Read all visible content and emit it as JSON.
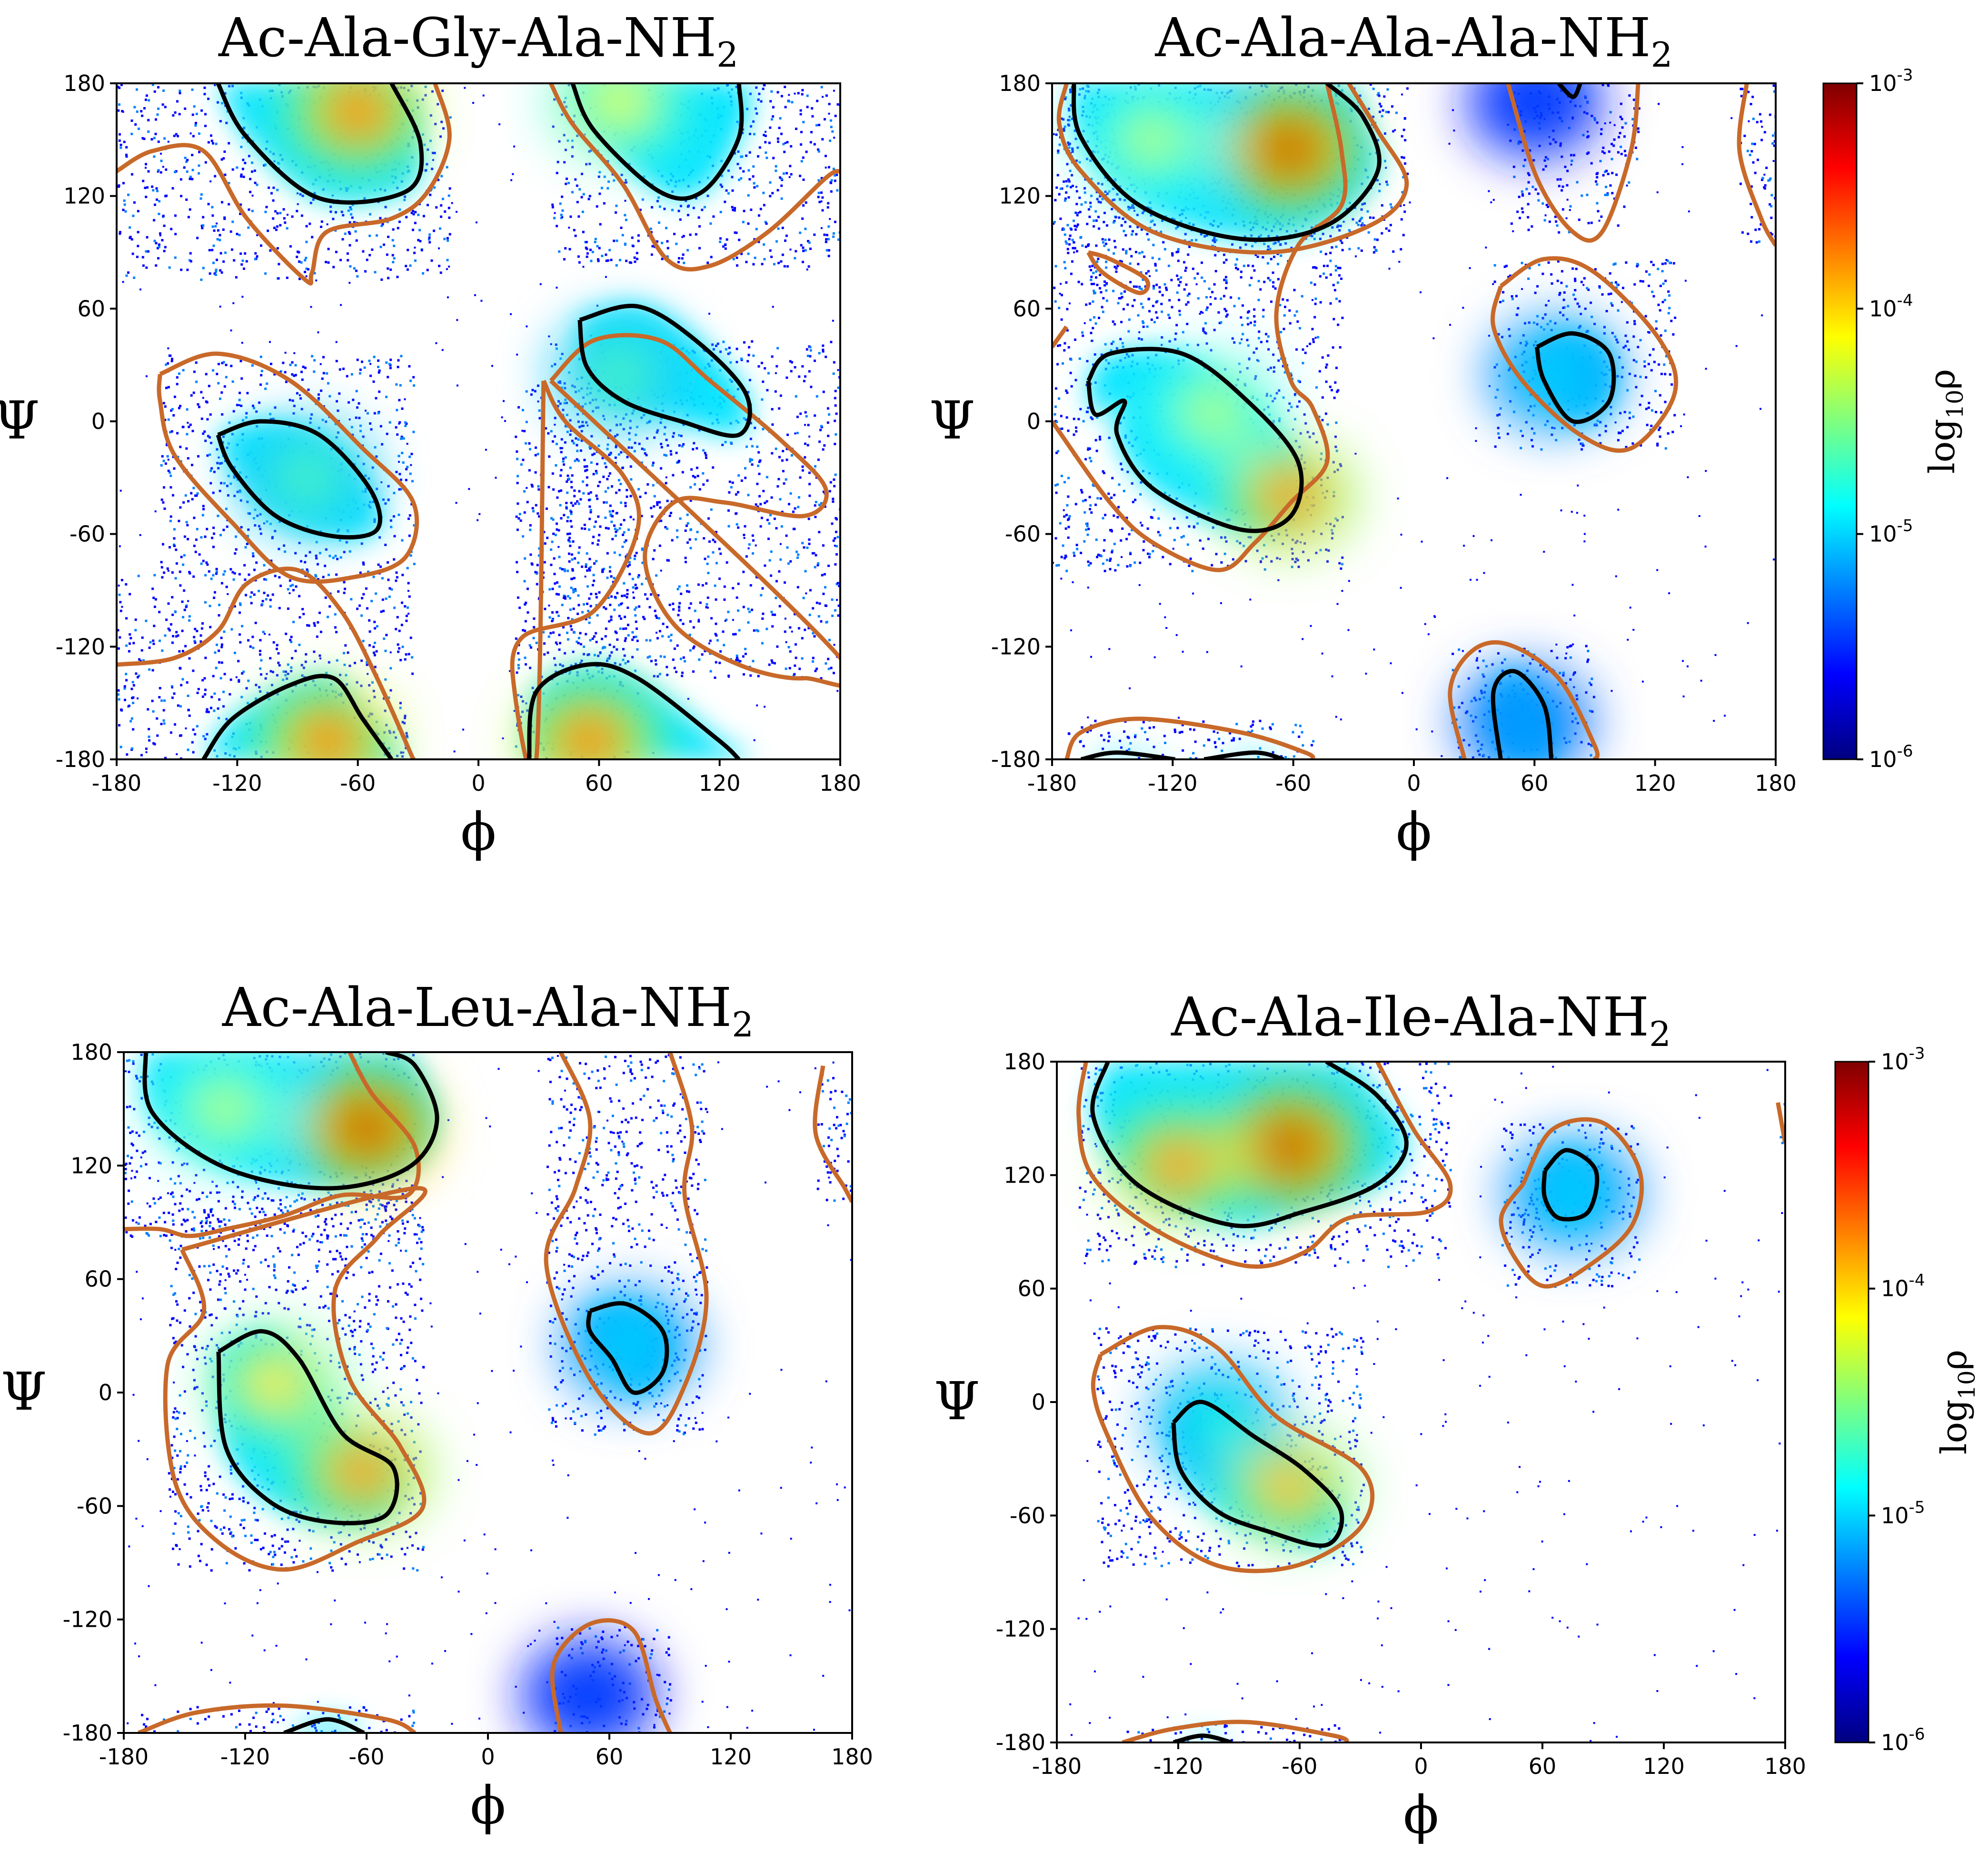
{
  "colors": {
    "outer_contour": "#c8692a",
    "inner_contour": "#000000",
    "colormap": [
      "#00007f",
      "#0000ff",
      "#007fff",
      "#00ffff",
      "#7fff7f",
      "#ffff00",
      "#ff7f00",
      "#ff0000",
      "#7f0000"
    ]
  },
  "colorbar": {
    "label_main": "log",
    "label_sub": "10",
    "label_end": "ρ",
    "ticks": [
      {
        "base": "10",
        "exp": "-3",
        "value": 0.001
      },
      {
        "base": "10",
        "exp": "-4",
        "value": 0.0001
      },
      {
        "base": "10",
        "exp": "-5",
        "value": 1e-05
      },
      {
        "base": "10",
        "exp": "-6",
        "value": 1e-06
      }
    ]
  },
  "chart_data": [
    {
      "type": "heatmap",
      "title_main": "Ac-Ala-Gly-Ala-NH",
      "title_sub": "2",
      "xlabel": "ϕ",
      "ylabel": "Ψ",
      "xlim": [
        -180,
        180
      ],
      "ylim": [
        -180,
        180
      ],
      "xticks": [
        "-180",
        "-120",
        "-60",
        "0",
        "60",
        "120",
        "180"
      ],
      "yticks": [
        "180",
        "120",
        "60",
        "0",
        "-60",
        "-120",
        "-180"
      ],
      "colorbar": false,
      "peaks": [
        {
          "phi": -60,
          "psi": 165,
          "level": 0.8
        },
        {
          "phi": 70,
          "psi": 170,
          "level": 0.6
        },
        {
          "phi": -85,
          "psi": -30,
          "level": 0.45
        },
        {
          "phi": 70,
          "psi": 25,
          "level": 0.45
        },
        {
          "phi": -75,
          "psi": -170,
          "level": 0.8
        },
        {
          "phi": 55,
          "psi": -170,
          "level": 0.8
        }
      ]
    },
    {
      "type": "heatmap",
      "title_main": "Ac-Ala-Ala-Ala-NH",
      "title_sub": "2",
      "xlabel": "ϕ",
      "ylabel": "Ψ",
      "xlim": [
        -180,
        180
      ],
      "ylim": [
        -180,
        180
      ],
      "xticks": [
        "-180",
        "-120",
        "-60",
        "0",
        "60",
        "120",
        "180"
      ],
      "yticks": [
        "180",
        "120",
        "60",
        "0",
        "-60",
        "-120",
        "-180"
      ],
      "colorbar": true,
      "peaks": [
        {
          "phi": -62,
          "psi": 145,
          "level": 0.95
        },
        {
          "phi": -130,
          "psi": 150,
          "level": 0.55
        },
        {
          "phi": -100,
          "psi": 5,
          "level": 0.55
        },
        {
          "phi": -62,
          "psi": -40,
          "level": 0.75
        },
        {
          "phi": 70,
          "psi": 25,
          "level": 0.35
        },
        {
          "phi": 55,
          "psi": -160,
          "level": 0.3
        },
        {
          "phi": 60,
          "psi": 170,
          "level": 0.2
        }
      ]
    },
    {
      "type": "heatmap",
      "title_main": "Ac-Ala-Leu-Ala-NH",
      "title_sub": "2",
      "xlabel": "ϕ",
      "ylabel": "Ψ",
      "xlim": [
        -180,
        180
      ],
      "ylim": [
        -180,
        180
      ],
      "xticks": [
        "-180",
        "-120",
        "-60",
        "0",
        "60",
        "120",
        "180"
      ],
      "yticks": [
        "180",
        "120",
        "60",
        "0",
        "-60",
        "-120",
        "-180"
      ],
      "colorbar": false,
      "peaks": [
        {
          "phi": -60,
          "psi": 140,
          "level": 0.95
        },
        {
          "phi": -130,
          "psi": 150,
          "level": 0.55
        },
        {
          "phi": -105,
          "psi": 5,
          "level": 0.65
        },
        {
          "phi": -62,
          "psi": -42,
          "level": 0.75
        },
        {
          "phi": 70,
          "psi": 25,
          "level": 0.35
        },
        {
          "phi": 50,
          "psi": -160,
          "level": 0.2
        }
      ]
    },
    {
      "type": "heatmap",
      "title_main": "Ac-Ala-Ile-Ala-NH",
      "title_sub": "2",
      "xlabel": "ϕ",
      "ylabel": "Ψ",
      "xlim": [
        -180,
        180
      ],
      "ylim": [
        -180,
        180
      ],
      "xticks": [
        "-180",
        "-120",
        "-60",
        "0",
        "60",
        "120",
        "180"
      ],
      "yticks": [
        "180",
        "120",
        "60",
        "0",
        "-60",
        "-120",
        "-180"
      ],
      "colorbar": true,
      "peaks": [
        {
          "phi": -65,
          "psi": 135,
          "level": 0.95
        },
        {
          "phi": -120,
          "psi": 125,
          "level": 0.75
        },
        {
          "phi": -100,
          "psi": -10,
          "level": 0.4
        },
        {
          "phi": -65,
          "psi": -45,
          "level": 0.7
        },
        {
          "phi": 75,
          "psi": 110,
          "level": 0.35
        }
      ]
    }
  ]
}
